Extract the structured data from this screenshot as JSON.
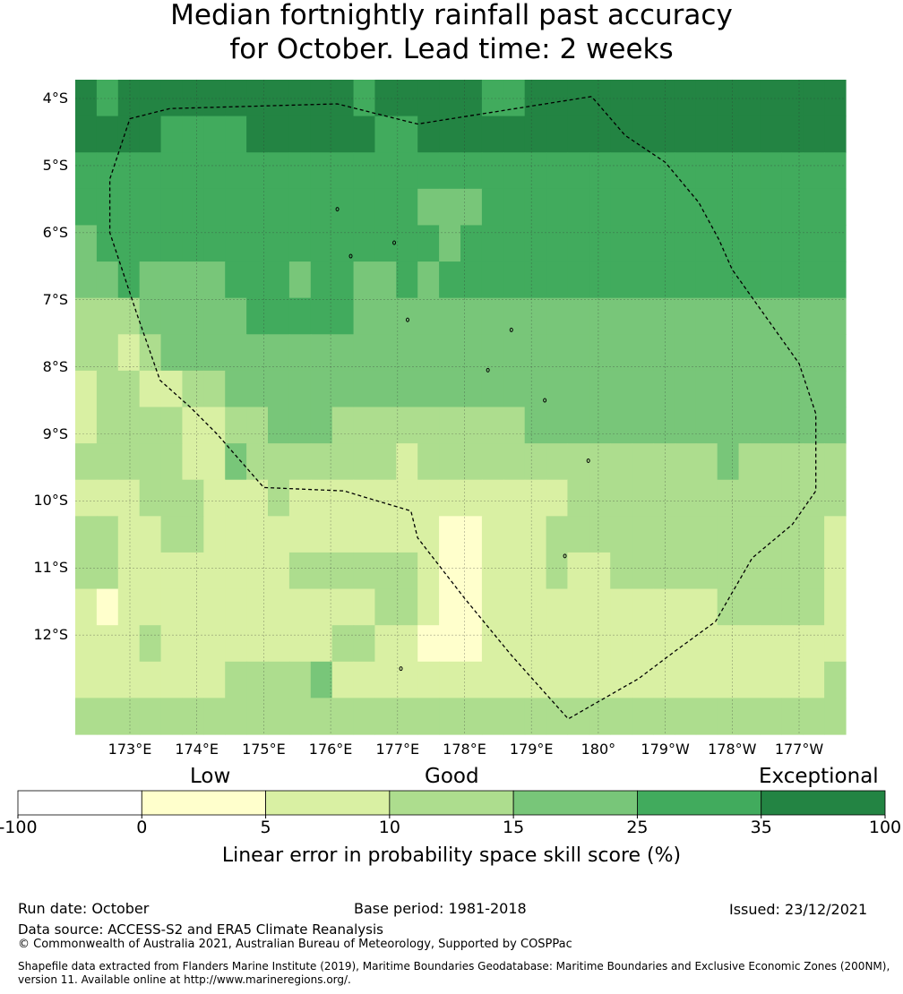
{
  "title": {
    "line1": "Median fortnightly rainfall past accuracy",
    "line2": "for October. Lead time: 2 weeks"
  },
  "map": {
    "lon_min": 172.2,
    "lon_max": 183.7,
    "lat_min": -13.75,
    "lat_max": -3.75,
    "cell_size": 0.833,
    "grid_start_lon": 172.5,
    "grid_start_lat": -4.0,
    "lat_ticks": [
      {
        "value": -4,
        "label": "4°S"
      },
      {
        "value": -5,
        "label": "5°S"
      },
      {
        "value": -6,
        "label": "6°S"
      },
      {
        "value": -7,
        "label": "7°S"
      },
      {
        "value": -8,
        "label": "8°S"
      },
      {
        "value": -9,
        "label": "9°S"
      },
      {
        "value": -10,
        "label": "10°S"
      },
      {
        "value": -11,
        "label": "11°S"
      },
      {
        "value": -12,
        "label": "12°S"
      }
    ],
    "lon_ticks": [
      {
        "value": 173,
        "label": "173°E"
      },
      {
        "value": 174,
        "label": "174°E"
      },
      {
        "value": 175,
        "label": "175°E"
      },
      {
        "value": 176,
        "label": "176°E"
      },
      {
        "value": 177,
        "label": "177°E"
      },
      {
        "value": 178,
        "label": "178°E"
      },
      {
        "value": 179,
        "label": "179°E"
      },
      {
        "value": 180,
        "label": "180°"
      },
      {
        "value": 181,
        "label": "179°W"
      },
      {
        "value": 182,
        "label": "178°W"
      },
      {
        "value": 183,
        "label": "177°W"
      }
    ],
    "score_classes": [
      "3333344444444333333333333333333333333333333333333334455555556665552222222222222333",
      "5444555555555554444444444433333333333334444444444444444445555555666664444444444444433"
    ],
    "grid": [
      [
        6,
        5,
        6,
        6,
        6,
        6,
        6,
        6,
        6,
        6,
        6,
        6,
        6,
        5,
        6,
        6,
        6,
        6,
        6,
        5,
        5,
        6,
        6,
        6,
        6,
        6,
        6,
        6,
        6,
        6,
        6,
        6,
        6,
        6,
        6,
        6
      ],
      [
        6,
        6,
        6,
        6,
        5,
        5,
        5,
        5,
        6,
        6,
        6,
        6,
        6,
        6,
        5,
        5,
        6,
        6,
        6,
        6,
        6,
        6,
        6,
        6,
        6,
        6,
        6,
        6,
        6,
        6,
        6,
        6,
        6,
        6,
        6,
        6
      ],
      [
        5,
        5,
        5,
        5,
        5,
        5,
        5,
        5,
        5,
        5,
        5,
        5,
        5,
        5,
        5,
        5,
        5,
        5,
        5,
        5,
        5,
        5,
        5,
        5,
        5,
        5,
        5,
        5,
        5,
        5,
        5,
        5,
        5,
        5,
        5,
        5
      ],
      [
        5,
        5,
        5,
        5,
        5,
        5,
        5,
        5,
        5,
        5,
        5,
        5,
        5,
        5,
        5,
        5,
        4,
        4,
        4,
        5,
        5,
        5,
        5,
        5,
        5,
        5,
        5,
        5,
        5,
        5,
        5,
        5,
        5,
        5,
        5,
        5
      ],
      [
        4,
        5,
        5,
        5,
        5,
        5,
        5,
        5,
        5,
        5,
        5,
        5,
        5,
        5,
        5,
        5,
        5,
        4,
        5,
        5,
        5,
        5,
        5,
        5,
        5,
        5,
        5,
        5,
        5,
        5,
        5,
        5,
        5,
        5,
        5,
        5
      ],
      [
        4,
        4,
        5,
        4,
        4,
        4,
        4,
        5,
        5,
        5,
        4,
        5,
        5,
        4,
        4,
        5,
        4,
        5,
        5,
        5,
        5,
        5,
        5,
        5,
        5,
        5,
        5,
        5,
        5,
        5,
        5,
        5,
        5,
        5,
        5,
        5
      ],
      [
        3,
        3,
        3,
        4,
        4,
        4,
        4,
        4,
        5,
        5,
        5,
        5,
        5,
        4,
        4,
        4,
        4,
        4,
        4,
        4,
        4,
        4,
        4,
        4,
        4,
        4,
        4,
        4,
        4,
        4,
        4,
        4,
        4,
        4,
        4,
        4
      ],
      [
        3,
        3,
        2,
        3,
        4,
        4,
        4,
        4,
        4,
        4,
        4,
        4,
        4,
        4,
        4,
        4,
        4,
        4,
        4,
        4,
        4,
        4,
        4,
        4,
        4,
        4,
        4,
        4,
        4,
        4,
        4,
        4,
        4,
        4,
        4,
        4
      ],
      [
        2,
        3,
        3,
        2,
        2,
        3,
        3,
        4,
        4,
        4,
        4,
        4,
        4,
        4,
        4,
        4,
        4,
        4,
        4,
        4,
        4,
        4,
        4,
        4,
        4,
        4,
        4,
        4,
        4,
        4,
        4,
        4,
        4,
        4,
        4,
        4
      ],
      [
        2,
        3,
        3,
        3,
        3,
        2,
        2,
        3,
        3,
        4,
        4,
        4,
        3,
        3,
        3,
        3,
        3,
        3,
        3,
        3,
        3,
        4,
        4,
        4,
        4,
        4,
        4,
        4,
        4,
        4,
        4,
        4,
        4,
        4,
        4,
        4
      ],
      [
        3,
        3,
        3,
        3,
        3,
        2,
        2,
        4,
        3,
        3,
        3,
        3,
        3,
        3,
        3,
        2,
        3,
        3,
        3,
        3,
        3,
        3,
        3,
        3,
        3,
        3,
        3,
        3,
        3,
        3,
        4,
        3,
        3,
        3,
        3,
        3
      ],
      [
        2,
        2,
        2,
        3,
        3,
        3,
        2,
        2,
        2,
        3,
        2,
        2,
        2,
        2,
        2,
        2,
        2,
        2,
        2,
        2,
        2,
        2,
        2,
        3,
        3,
        3,
        3,
        3,
        3,
        3,
        3,
        3,
        3,
        3,
        3,
        3
      ],
      [
        3,
        3,
        2,
        2,
        3,
        3,
        2,
        2,
        2,
        2,
        2,
        2,
        2,
        2,
        2,
        2,
        2,
        1,
        1,
        2,
        2,
        2,
        3,
        3,
        3,
        3,
        3,
        3,
        3,
        3,
        3,
        3,
        3,
        3,
        3,
        2
      ],
      [
        3,
        3,
        2,
        2,
        2,
        2,
        2,
        2,
        2,
        2,
        3,
        3,
        3,
        3,
        3,
        3,
        2,
        1,
        1,
        2,
        2,
        2,
        3,
        2,
        2,
        3,
        3,
        3,
        3,
        3,
        3,
        3,
        3,
        3,
        3,
        2
      ],
      [
        2,
        1,
        2,
        2,
        2,
        2,
        2,
        2,
        2,
        2,
        2,
        2,
        2,
        2,
        3,
        3,
        2,
        1,
        1,
        2,
        2,
        2,
        2,
        2,
        2,
        2,
        2,
        2,
        2,
        2,
        3,
        3,
        3,
        3,
        3,
        2
      ],
      [
        2,
        2,
        2,
        3,
        2,
        2,
        2,
        2,
        2,
        2,
        2,
        2,
        3,
        3,
        2,
        2,
        1,
        1,
        1,
        2,
        2,
        2,
        2,
        2,
        2,
        2,
        2,
        2,
        2,
        2,
        2,
        2,
        2,
        2,
        2,
        2
      ],
      [
        2,
        2,
        2,
        2,
        2,
        2,
        2,
        3,
        3,
        3,
        3,
        4,
        2,
        2,
        2,
        2,
        2,
        2,
        2,
        2,
        2,
        2,
        2,
        2,
        2,
        2,
        2,
        2,
        2,
        2,
        2,
        2,
        2,
        2,
        2,
        3
      ],
      [
        3,
        3,
        3,
        3,
        3,
        3,
        3,
        3,
        3,
        3,
        3,
        3,
        3,
        3,
        3,
        3,
        3,
        3,
        3,
        3,
        3,
        3,
        3,
        3,
        3,
        3,
        3,
        3,
        3,
        3,
        3,
        3,
        3,
        3,
        3,
        3
      ]
    ],
    "boundary_path": [
      [
        173.0,
        -4.3
      ],
      [
        173.6,
        -4.15
      ],
      [
        176.1,
        -4.08
      ],
      [
        177.3,
        -4.38
      ],
      [
        179.9,
        -3.97
      ],
      [
        180.4,
        -4.55
      ],
      [
        181.0,
        -4.95
      ],
      [
        181.5,
        -5.55
      ],
      [
        181.8,
        -6.1
      ],
      [
        182.0,
        -6.55
      ],
      [
        182.5,
        -7.25
      ],
      [
        183.0,
        -7.95
      ],
      [
        183.25,
        -8.7
      ],
      [
        183.25,
        -9.85
      ],
      [
        182.9,
        -10.35
      ],
      [
        182.3,
        -10.85
      ],
      [
        181.75,
        -11.8
      ],
      [
        181.2,
        -12.2
      ],
      [
        180.6,
        -12.65
      ],
      [
        179.55,
        -13.25
      ],
      [
        178.7,
        -12.3
      ],
      [
        178.0,
        -11.45
      ],
      [
        177.3,
        -10.55
      ],
      [
        177.2,
        -10.15
      ],
      [
        176.2,
        -9.85
      ],
      [
        175.0,
        -9.8
      ],
      [
        174.3,
        -9.0
      ],
      [
        173.9,
        -8.6
      ],
      [
        173.45,
        -8.2
      ],
      [
        173.1,
        -7.2
      ],
      [
        172.7,
        -6.0
      ],
      [
        172.7,
        -5.2
      ],
      [
        173.0,
        -4.3
      ]
    ],
    "islands": [
      [
        176.1,
        -5.65
      ],
      [
        176.95,
        -6.15
      ],
      [
        176.3,
        -6.35
      ],
      [
        177.15,
        -7.3
      ],
      [
        178.7,
        -7.45
      ],
      [
        178.35,
        -8.05
      ],
      [
        179.2,
        -8.5
      ],
      [
        179.85,
        -9.4
      ],
      [
        179.5,
        -10.82
      ],
      [
        177.05,
        -12.5
      ]
    ]
  },
  "colorbar": {
    "category_labels": [
      "Low",
      "Good",
      "Exceptional"
    ],
    "boundaries": [
      "-100",
      "0",
      "5",
      "10",
      "15",
      "25",
      "35",
      "100"
    ],
    "colors": [
      "#ffffff",
      "#ffffcc",
      "#d9f0a3",
      "#addd8e",
      "#78c679",
      "#41ab5d",
      "#238443"
    ],
    "label": "Linear error in probability space skill score (%)"
  },
  "footer": {
    "run_date": "Run date: October",
    "base_period": "Base period: 1981-2018",
    "issued": "Issued: 23/12/2021",
    "data_source": "Data source: ACCESS-S2 and ERA5 Climate Reanalysis",
    "copyright": "© Commonwealth of Australia 2021, Australian Bureau of Meteorology, Supported by COSPPac",
    "shapefile_line1": "Shapefile data extracted from Flanders Marine Institute (2019), Maritime Boundaries Geodatabase: Maritime Boundaries and Exclusive Economic Zones (200NM),",
    "shapefile_line2": "version 11. Available online at http://www.marineregions.org/."
  }
}
